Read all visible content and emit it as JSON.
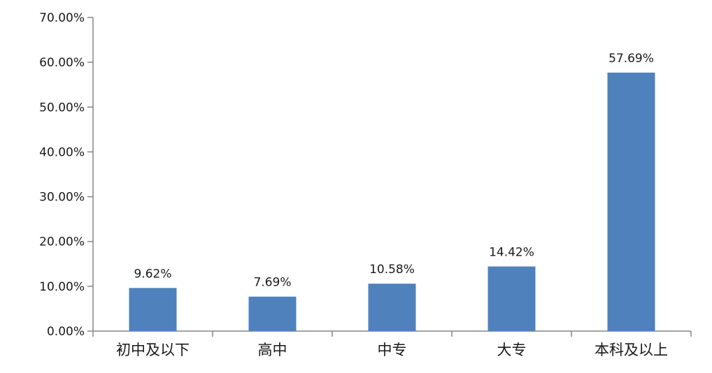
{
  "chart_data": {
    "type": "bar",
    "title": "",
    "xlabel": "",
    "ylabel": "",
    "categories": [
      "初中及以下",
      "高中",
      "中专",
      "大专",
      "本科及以上"
    ],
    "values": [
      9.62,
      7.69,
      10.58,
      14.42,
      57.69
    ],
    "value_labels": [
      "9.62%",
      "7.69%",
      "10.58%",
      "14.42%",
      "57.69%"
    ],
    "ylim": [
      0,
      70
    ],
    "y_ticks": [
      0,
      10,
      20,
      30,
      40,
      50,
      60,
      70
    ],
    "y_tick_labels": [
      "0.00%",
      "10.00%",
      "20.00%",
      "30.00%",
      "40.00%",
      "50.00%",
      "60.00%",
      "70.00%"
    ],
    "grid": false,
    "legend": "none",
    "bar_color": "#4f81bd",
    "axis_color": "#868686"
  }
}
